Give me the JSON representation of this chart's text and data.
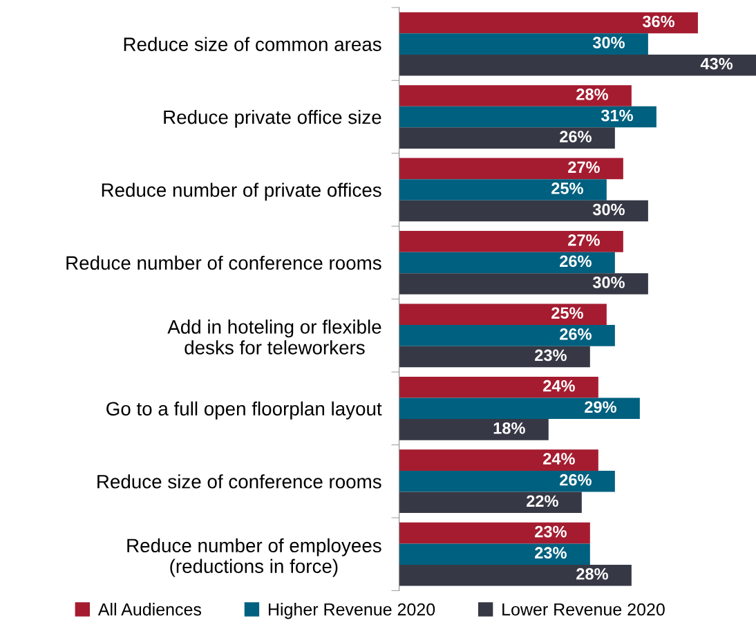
{
  "chart_data": {
    "type": "bar",
    "orientation": "horizontal",
    "categories": [
      "Reduce size of common areas",
      "Reduce private office size",
      "Reduce number of private offices",
      "Reduce number of conference rooms",
      "Add in hoteling or flexible\ndesks for teleworkers",
      "Go to a full open floorplan layout",
      "Reduce size of conference rooms",
      "Reduce number of employees\n(reductions in force)"
    ],
    "series": [
      {
        "name": "All Audiences",
        "color": "#a51c30",
        "values": [
          36,
          28,
          27,
          27,
          25,
          24,
          24,
          23
        ],
        "value_labels": [
          "36%",
          "28%",
          "27%",
          "27%",
          "25%",
          "24%",
          "24%",
          "23%"
        ]
      },
      {
        "name": "Higher Revenue 2020",
        "color": "#00607f",
        "values": [
          30,
          31,
          25,
          26,
          26,
          29,
          26,
          23
        ],
        "value_labels": [
          "30%",
          "31%",
          "25%",
          "26%",
          "26%",
          "29%",
          "26%",
          "23%"
        ]
      },
      {
        "name": "Lower Revenue 2020",
        "color": "#363945",
        "values": [
          43,
          26,
          30,
          30,
          23,
          18,
          22,
          28
        ],
        "value_labels": [
          "43%",
          "26%",
          "30%",
          "30%",
          "23%",
          "18%",
          "22%",
          "28%"
        ]
      }
    ],
    "grid": false,
    "legend": "bottom"
  }
}
